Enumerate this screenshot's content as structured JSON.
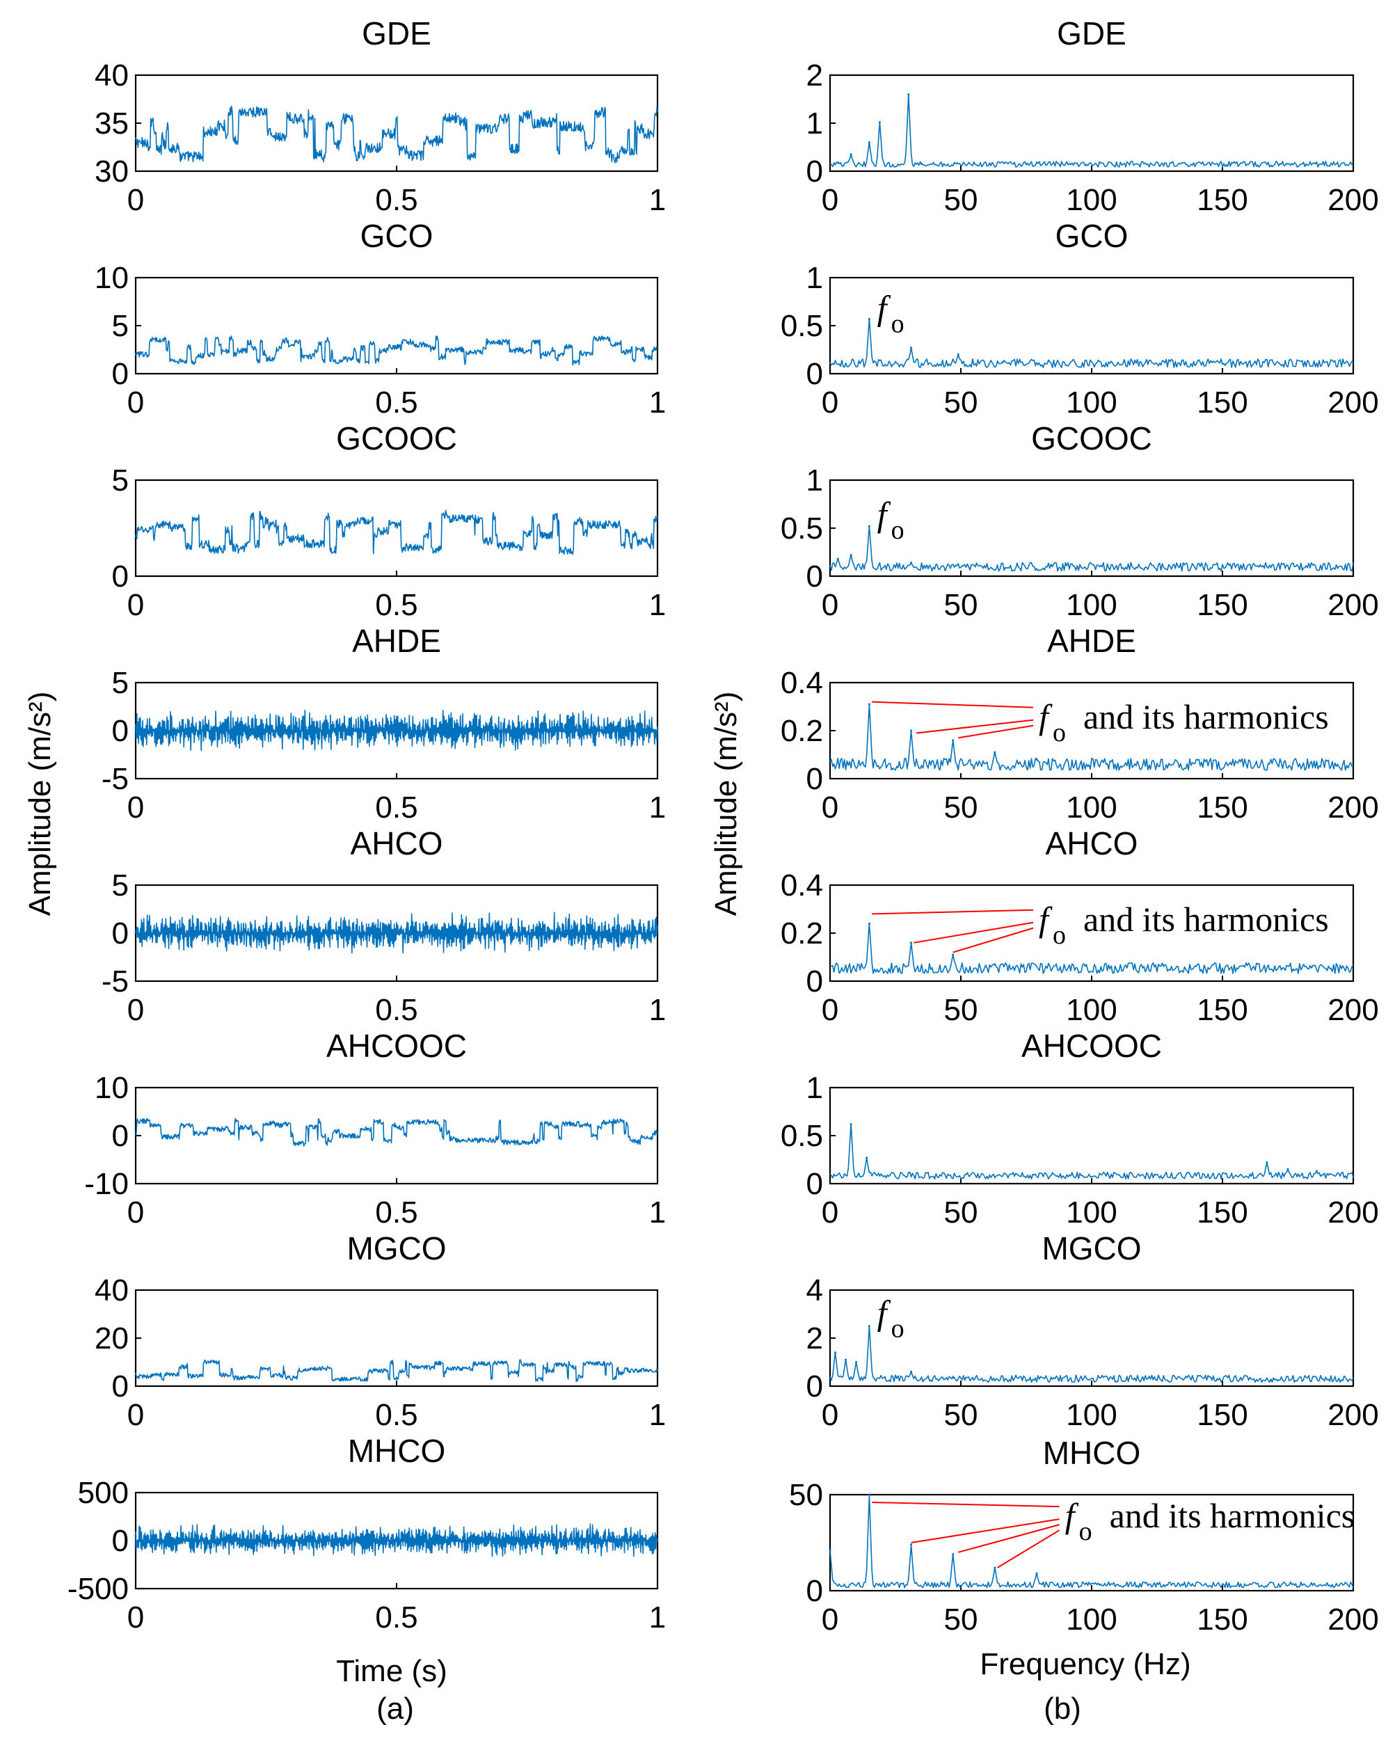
{
  "chart_data": {
    "type": "line",
    "ylabel": "Amplitude (m/s²)",
    "left_column": {
      "xlabel": "Time (s)",
      "caption": "(a)",
      "xlim": [
        0,
        1
      ],
      "xticks": [
        "0",
        "0.5",
        "1"
      ],
      "panels": [
        {
          "title": "GDE",
          "ylim": [
            30,
            40
          ],
          "yticks": [
            "40",
            "35",
            "30"
          ],
          "baseline": 33,
          "spread": 3.2,
          "style": "step"
        },
        {
          "title": "GCO",
          "ylim": [
            0,
            10
          ],
          "yticks": [
            "10",
            "5",
            "0"
          ],
          "baseline": 2,
          "spread": 1.6,
          "style": "step"
        },
        {
          "title": "GCOOC",
          "ylim": [
            0,
            5
          ],
          "yticks": [
            "5",
            "0"
          ],
          "baseline": 2,
          "spread": 1.2,
          "style": "step"
        },
        {
          "title": "AHDE",
          "ylim": [
            -5,
            5
          ],
          "yticks": [
            "5",
            "0",
            "-5"
          ],
          "baseline": 0,
          "spread": 2.2,
          "style": "osc"
        },
        {
          "title": "AHCO",
          "ylim": [
            -5,
            5
          ],
          "yticks": [
            "5",
            "0",
            "-5"
          ],
          "baseline": 0,
          "spread": 2.2,
          "style": "osc"
        },
        {
          "title": "AHCOOC",
          "ylim": [
            -10,
            10
          ],
          "yticks": [
            "10",
            "0",
            "-10"
          ],
          "baseline": 0,
          "spread": 3,
          "style": "step"
        },
        {
          "title": "MGCO",
          "ylim": [
            0,
            40
          ],
          "yticks": [
            "40",
            "20",
            "0"
          ],
          "baseline": 5,
          "spread": 5,
          "style": "step"
        },
        {
          "title": "MHCO",
          "ylim": [
            -500,
            500
          ],
          "yticks": [
            "500",
            "0",
            "-500"
          ],
          "baseline": 0,
          "spread": 180,
          "style": "osc"
        }
      ]
    },
    "right_column": {
      "xlabel": "Frequency (Hz)",
      "caption": "(b)",
      "xlim": [
        0,
        200
      ],
      "xticks": [
        "0",
        "50",
        "100",
        "150",
        "200"
      ],
      "panels": [
        {
          "title": "GDE",
          "ylim": [
            0,
            2
          ],
          "yticks": [
            "2",
            "1",
            "0"
          ],
          "floor": 0.12,
          "noise": 0.06,
          "peaks": [
            [
              3,
              0.18
            ],
            [
              8,
              0.35
            ],
            [
              15,
              0.6
            ],
            [
              19,
              1.02
            ],
            [
              30,
              1.6
            ],
            [
              35,
              0.15
            ]
          ],
          "annotation": null
        },
        {
          "title": "GCO",
          "ylim": [
            0,
            1
          ],
          "yticks": [
            "1",
            "0.5",
            "0"
          ],
          "floor": 0.09,
          "noise": 0.045,
          "peaks": [
            [
              15,
              0.57
            ],
            [
              31,
              0.27
            ],
            [
              49,
              0.2
            ],
            [
              66,
              0.12
            ]
          ],
          "annotation": {
            "symbol": "f",
            "sub": "o",
            "text": "",
            "at_hz": 18,
            "at_val": 0.62,
            "pointers": []
          }
        },
        {
          "title": "GCOOC",
          "ylim": [
            0,
            1
          ],
          "yticks": [
            "1",
            "0.5",
            "0"
          ],
          "floor": 0.08,
          "noise": 0.045,
          "peaks": [
            [
              3,
              0.18
            ],
            [
              8,
              0.22
            ],
            [
              15,
              0.52
            ],
            [
              31,
              0.14
            ]
          ],
          "annotation": {
            "symbol": "f",
            "sub": "o",
            "text": "",
            "at_hz": 18,
            "at_val": 0.58,
            "pointers": []
          }
        },
        {
          "title": "AHDE",
          "ylim": [
            0,
            0.4
          ],
          "yticks": [
            "0.4",
            "0.2",
            "0"
          ],
          "floor": 0.05,
          "noise": 0.025,
          "peaks": [
            [
              15,
              0.31
            ],
            [
              31,
              0.2
            ],
            [
              47,
              0.16
            ],
            [
              63,
              0.11
            ],
            [
              79,
              0.08
            ]
          ],
          "annotation": {
            "symbol": "f",
            "sub": "o",
            "text": "and its harmonics",
            "at_hz": 75,
            "at_val": 0.25,
            "pointers": [
              [
                16,
                0.32
              ],
              [
                33,
                0.19
              ],
              [
                49,
                0.17
              ]
            ]
          }
        },
        {
          "title": "AHCO",
          "ylim": [
            0,
            0.4
          ],
          "yticks": [
            "0.4",
            "0.2",
            "0"
          ],
          "floor": 0.045,
          "noise": 0.022,
          "peaks": [
            [
              15,
              0.24
            ],
            [
              31,
              0.16
            ],
            [
              47,
              0.11
            ],
            [
              63,
              0.07
            ]
          ],
          "annotation": {
            "symbol": "f",
            "sub": "o",
            "text": "and its harmonics",
            "at_hz": 75,
            "at_val": 0.25,
            "pointers": [
              [
                16,
                0.28
              ],
              [
                32,
                0.16
              ],
              [
                47,
                0.12
              ]
            ]
          }
        },
        {
          "title": "AHCOOC",
          "ylim": [
            0,
            1
          ],
          "yticks": [
            "1",
            "0.5",
            "0"
          ],
          "floor": 0.07,
          "noise": 0.035,
          "peaks": [
            [
              8,
              0.62
            ],
            [
              14,
              0.27
            ],
            [
              167,
              0.22
            ],
            [
              175,
              0.15
            ],
            [
              186,
              0.13
            ]
          ],
          "annotation": null
        },
        {
          "title": "MGCO",
          "ylim": [
            0,
            4
          ],
          "yticks": [
            "4",
            "2",
            "0"
          ],
          "floor": 0.25,
          "noise": 0.15,
          "peaks": [
            [
              2,
              1.4
            ],
            [
              6,
              1.1
            ],
            [
              10,
              1.0
            ],
            [
              15,
              2.5
            ],
            [
              31,
              0.6
            ],
            [
              47,
              0.35
            ]
          ],
          "annotation": {
            "symbol": "f",
            "sub": "o",
            "text": "",
            "at_hz": 18,
            "at_val": 2.8,
            "pointers": []
          }
        },
        {
          "title": "MHCO",
          "ylim": [
            0,
            50
          ],
          "yticks": [
            "50",
            "0"
          ],
          "floor": 2.5,
          "noise": 1.5,
          "peaks": [
            [
              0,
              21
            ],
            [
              15,
              50
            ],
            [
              31,
              24
            ],
            [
              47,
              19
            ],
            [
              63,
              12
            ],
            [
              79,
              9
            ]
          ],
          "annotation": {
            "symbol": "f",
            "sub": "o",
            "text": "and its harmonics",
            "at_hz": 85,
            "at_val": 38,
            "pointers": [
              [
                16,
                46
              ],
              [
                31,
                25
              ],
              [
                49,
                20
              ],
              [
                64,
                12
              ]
            ]
          }
        }
      ]
    }
  }
}
